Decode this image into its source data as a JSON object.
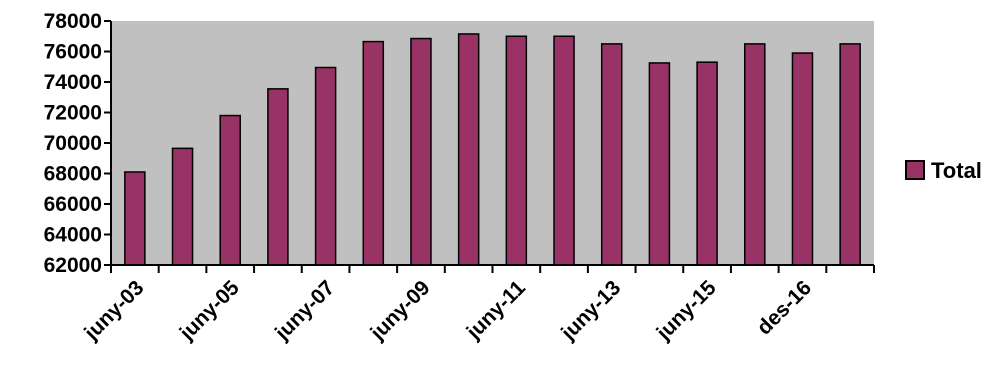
{
  "colors": {
    "plot_background": "#c0c0c0",
    "bar_fill": "#993366",
    "bar_stroke": "#000000",
    "axis": "#000000"
  },
  "chart_data": {
    "type": "bar",
    "title": "",
    "xlabel": "",
    "ylabel": "",
    "categories": [
      "",
      "",
      "",
      "",
      "",
      "",
      "",
      "",
      "",
      "",
      "",
      "",
      "",
      "",
      "",
      ""
    ],
    "x_tick_labels": [
      {
        "label": "juny-03",
        "index": 0
      },
      {
        "label": "juny-05",
        "index": 2
      },
      {
        "label": "juny-07",
        "index": 4
      },
      {
        "label": "juny-09",
        "index": 6
      },
      {
        "label": "juny-11",
        "index": 8
      },
      {
        "label": "juny-13",
        "index": 10
      },
      {
        "label": "juny-15",
        "index": 12
      },
      {
        "label": "des-16",
        "index": 14
      }
    ],
    "series": [
      {
        "name": "Total",
        "values": [
          68100,
          69650,
          71800,
          73550,
          74950,
          76650,
          76850,
          77150,
          77000,
          77000,
          76500,
          75250,
          75300,
          76500,
          75900,
          76500
        ]
      }
    ],
    "ylim": [
      62000,
      78000
    ],
    "y_ticks": [
      62000,
      64000,
      66000,
      68000,
      70000,
      72000,
      74000,
      76000,
      78000
    ],
    "grid": false,
    "legend_position": "right"
  }
}
